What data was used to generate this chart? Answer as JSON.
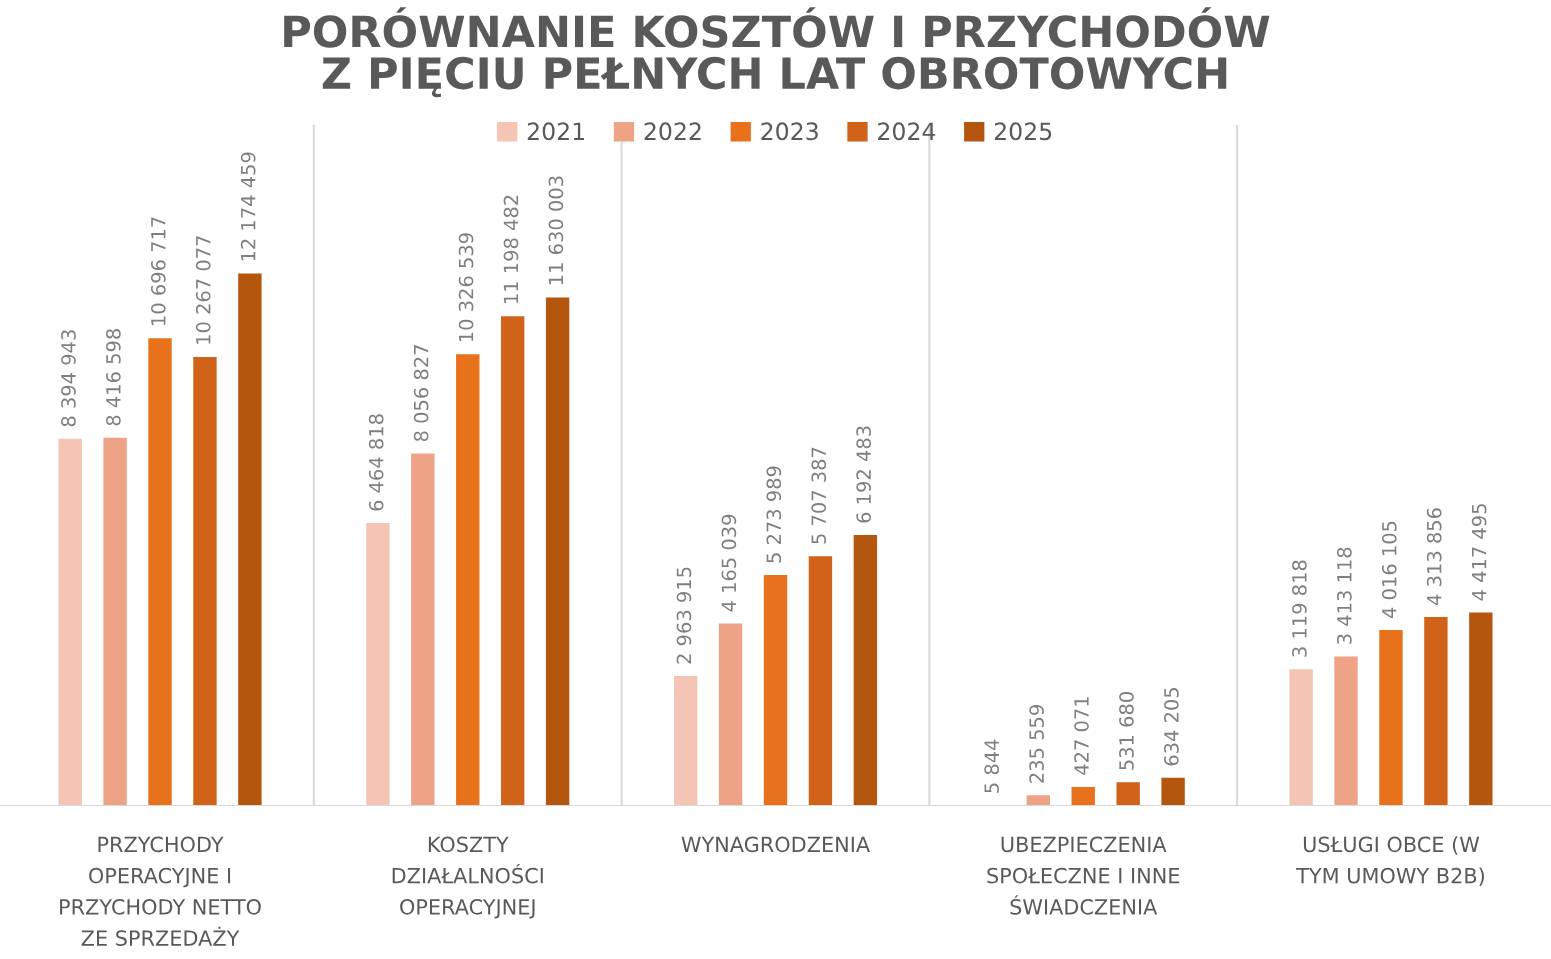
{
  "chart_data": {
    "type": "bar",
    "title": "PORÓWNANIE KOSZTÓW I PRZYCHODÓW\nZ PIĘCIU PEŁNYCH LAT OBROTOWYCH",
    "categories": [
      "PRZYCHODY\nOPERACYJNE I\nPRZYCHODY NETTO\nZE SPRZEDAŻY",
      "KOSZTY\nDZIAŁALNOŚCI\nOPERACYJNEJ",
      "WYNAGRODZENIA",
      "UBEZPIECZENIA\nSPOŁECZNE I INNE\nŚWIADCZENIA",
      "USŁUGI OBCE (W\nTYM UMOWY B2B)"
    ],
    "series": [
      {
        "name": "2021",
        "color": "#f4c4b4",
        "values": [
          8394943,
          6464818,
          2963915,
          5844,
          3119818
        ],
        "value_labels": [
          "8 394 943",
          "6 464 818",
          "2 963 915",
          "5 844",
          "3 119 818"
        ]
      },
      {
        "name": "2022",
        "color": "#eea386",
        "values": [
          8416598,
          8056827,
          4165039,
          235559,
          3413118
        ],
        "value_labels": [
          "8 416 598",
          "8 056 827",
          "4 165 039",
          "235 559",
          "3 413 118"
        ]
      },
      {
        "name": "2023",
        "color": "#e8711c",
        "values": [
          10696717,
          10326539,
          5273989,
          427071,
          4016105
        ],
        "value_labels": [
          "10 696 717",
          "10 326 539",
          "5 273 989",
          "427 071",
          "4 016 105"
        ]
      },
      {
        "name": "2024",
        "color": "#d0621a",
        "values": [
          10267077,
          11198482,
          5707387,
          531680,
          4313856
        ],
        "value_labels": [
          "10 267 077",
          "11 198 482",
          "5 707 387",
          "531 680",
          "4 313 856"
        ]
      },
      {
        "name": "2025",
        "color": "#b5560f",
        "values": [
          12174459,
          11630003,
          6192483,
          634205,
          4417495
        ],
        "value_labels": [
          "12 174 459",
          "11 630 003",
          "6 192 483",
          "634 205",
          "4 417 495"
        ]
      }
    ],
    "grid": "x",
    "legend": "top"
  }
}
